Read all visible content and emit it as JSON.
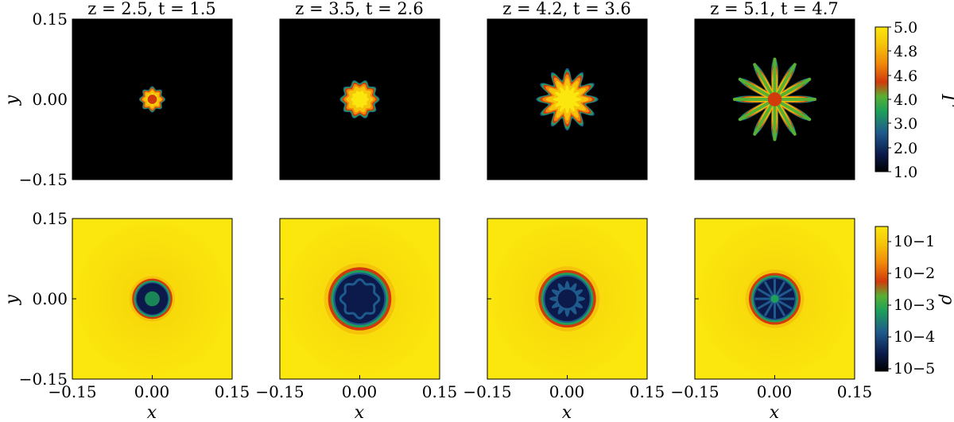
{
  "chart_data": {
    "type": "heatmap",
    "x": {
      "label": "x",
      "ticks": [
        "−0.15",
        "0.00",
        "0.15"
      ],
      "range": [
        -0.15,
        0.15
      ]
    },
    "y": {
      "label": "y",
      "ticks": [
        "0.15",
        "0.00",
        "−0.15"
      ],
      "range": [
        -0.15,
        0.15
      ]
    },
    "panels": [
      {
        "title": "z = 2.5, t = 1.5",
        "z": 2.5,
        "t": 1.5,
        "gamma_radius": 0.022,
        "gamma_lobes": 8,
        "gamma_amp": 0.12,
        "rho_radius": 0.035
      },
      {
        "title": "z = 3.5, t = 2.6",
        "z": 3.5,
        "t": 2.6,
        "gamma_radius": 0.034,
        "gamma_lobes": 10,
        "gamma_amp": 0.1,
        "rho_radius": 0.055
      },
      {
        "title": "z = 4.2, t = 3.6",
        "z": 4.2,
        "t": 3.6,
        "gamma_radius": 0.048,
        "gamma_lobes": 12,
        "gamma_amp": 0.22,
        "rho_radius": 0.05
      },
      {
        "title": "z = 5.1, t = 4.7",
        "z": 5.1,
        "t": 4.7,
        "gamma_radius": 0.052,
        "gamma_lobes": 12,
        "gamma_amp": 0.5,
        "rho_radius": 0.045
      }
    ],
    "rows": [
      {
        "quantity": "Γ",
        "colorbar_label": "Γ",
        "colorbar_ticks": [
          "5.0",
          "4.8",
          "4.6",
          "4.0",
          "3.0",
          "2.0",
          "1.0"
        ],
        "range": [
          1.0,
          5.0
        ]
      },
      {
        "quantity": "ρ",
        "colorbar_label": "ρ",
        "colorbar_ticks": [
          "10−1",
          "10−2",
          "10−3",
          "10−4",
          "10−5"
        ],
        "scale": "log",
        "range": [
          1e-05,
          1
        ]
      }
    ],
    "colormap": [
      "#000000",
      "#0b1a4a",
      "#1f5a8c",
      "#1ea05a",
      "#58b032",
      "#d23a0c",
      "#f08a0a",
      "#f5c40a",
      "#fbe60d"
    ]
  }
}
